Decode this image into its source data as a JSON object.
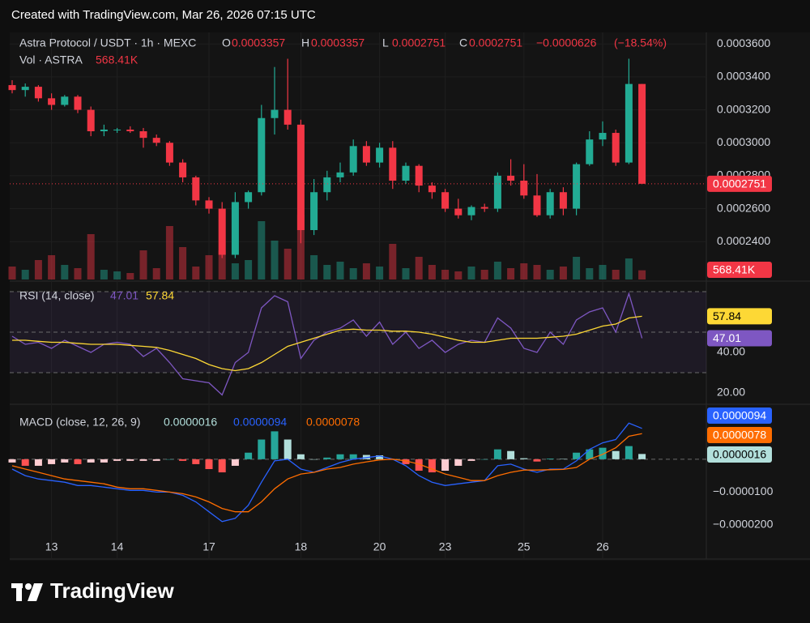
{
  "header": {
    "credit": "Created with TradingView.com, Mar 26, 2026 07:15 UTC"
  },
  "chart_data": {
    "type": "candlestick",
    "title": "Astra Protocol / USDT · 1h · MEXC",
    "ohlc_labels": [
      "O",
      "H",
      "L",
      "C"
    ],
    "change": {
      "value": -6.26e-05,
      "label": "−0.0000626",
      "percent": -18.54,
      "percent_label": "(−18.54%)"
    },
    "categories": [
      null,
      null,
      null,
      "13",
      null,
      null,
      null,
      null,
      "14",
      null,
      null,
      null,
      null,
      null,
      null,
      "17",
      null,
      null,
      null,
      null,
      null,
      null,
      "18",
      null,
      null,
      null,
      null,
      null,
      "20",
      null,
      null,
      null,
      null,
      "23",
      null,
      null,
      null,
      null,
      null,
      "25",
      null,
      null,
      null,
      null,
      null,
      "26",
      null,
      null,
      null
    ],
    "ohlc": [
      [
        0.000335,
        0.000338,
        0.00033,
        0.000332
      ],
      [
        0.000332,
        0.000336,
        0.000328,
        0.000334
      ],
      [
        0.000334,
        0.000335,
        0.000325,
        0.000327
      ],
      [
        0.000327,
        0.00033,
        0.00032,
        0.000323
      ],
      [
        0.000323,
        0.000329,
        0.000322,
        0.000328
      ],
      [
        0.000328,
        0.000329,
        0.000318,
        0.00032
      ],
      [
        0.00032,
        0.000322,
        0.000304,
        0.000307
      ],
      [
        0.000307,
        0.000311,
        0.000304,
        0.000308
      ],
      [
        0.000308,
        0.000309,
        0.000306,
        0.000308
      ],
      [
        0.000308,
        0.00031,
        0.000306,
        0.000307
      ],
      [
        0.000307,
        0.000309,
        0.000297,
        0.000303
      ],
      [
        0.000303,
        0.000305,
        0.000298,
        0.0003
      ],
      [
        0.0003,
        0.000301,
        0.000286,
        0.000288
      ],
      [
        0.000288,
        0.00029,
        0.000276,
        0.000279
      ],
      [
        0.000279,
        0.00028,
        0.000262,
        0.000265
      ],
      [
        0.000265,
        0.000267,
        0.000257,
        0.00026
      ],
      [
        0.00026,
        0.000264,
        0.00023,
        0.000232
      ],
      [
        0.000232,
        0.00027,
        0.00023,
        0.000264
      ],
      [
        0.000264,
        0.000271,
        0.00026,
        0.00027
      ],
      [
        0.00027,
        0.000323,
        0.000268,
        0.000315
      ],
      [
        0.000315,
        0.000346,
        0.000305,
        0.00032
      ],
      [
        0.00032,
        0.000351,
        0.000308,
        0.000311
      ],
      [
        0.000311,
        0.000314,
        0.000239,
        0.000247
      ],
      [
        0.000247,
        0.000278,
        0.000244,
        0.00027
      ],
      [
        0.00027,
        0.000283,
        0.000265,
        0.000279
      ],
      [
        0.000279,
        0.000288,
        0.000276,
        0.000282
      ],
      [
        0.000282,
        0.000302,
        0.00028,
        0.000298
      ],
      [
        0.000298,
        0.000301,
        0.000286,
        0.000288
      ],
      [
        0.000288,
        0.0003,
        0.000285,
        0.000297
      ],
      [
        0.000297,
        0.000301,
        0.000272,
        0.000277
      ],
      [
        0.000277,
        0.000288,
        0.000275,
        0.000286
      ],
      [
        0.000286,
        0.000287,
        0.00027,
        0.000274
      ],
      [
        0.000274,
        0.000276,
        0.000266,
        0.00027
      ],
      [
        0.00027,
        0.000272,
        0.000258,
        0.00026
      ],
      [
        0.00026,
        0.000266,
        0.000254,
        0.000256
      ],
      [
        0.000256,
        0.000262,
        0.000253,
        0.000261
      ],
      [
        0.000261,
        0.000263,
        0.000258,
        0.00026
      ],
      [
        0.00026,
        0.000282,
        0.000258,
        0.00028
      ],
      [
        0.00028,
        0.00029,
        0.000274,
        0.000277
      ],
      [
        0.000277,
        0.000287,
        0.000266,
        0.000268
      ],
      [
        0.000268,
        0.000281,
        0.000255,
        0.000256
      ],
      [
        0.000256,
        0.000272,
        0.000254,
        0.00027
      ],
      [
        0.00027,
        0.000273,
        0.000256,
        0.00026
      ],
      [
        0.00026,
        0.000288,
        0.000256,
        0.000287
      ],
      [
        0.000287,
        0.000307,
        0.000286,
        0.000302
      ],
      [
        0.000302,
        0.000313,
        0.000298,
        0.000306
      ],
      [
        0.000306,
        0.000308,
        0.000286,
        0.000288
      ],
      [
        0.000288,
        0.000351,
        0.000287,
        0.0003357
      ],
      [
        0.0003357,
        0.0003357,
        0.0002751,
        0.0002751
      ]
    ],
    "up_color": "#22ab94",
    "down_color": "#f23645",
    "ylim": [
      0.000217,
      0.000367
    ],
    "yticks": [
      {
        "value": 0.00024,
        "label": "0.0002400"
      },
      {
        "value": 0.00026,
        "label": "0.0002600"
      },
      {
        "value": 0.00028,
        "label": "0.0002800"
      },
      {
        "value": 0.0003,
        "label": "0.0003000"
      },
      {
        "value": 0.00032,
        "label": "0.0003200"
      },
      {
        "value": 0.00034,
        "label": "0.0003400"
      },
      {
        "value": 0.00036,
        "label": "0.0003600"
      }
    ],
    "grid": true,
    "volume": {
      "name": "Vol · ASTRA",
      "values": [
        800000,
        600000,
        1200000,
        1500000,
        900000,
        700000,
        2800000,
        600000,
        500000,
        400000,
        1800000,
        700000,
        3300000,
        2000000,
        800000,
        1500000,
        1800000,
        1000000,
        1200000,
        3600000,
        2400000,
        1900000,
        4000000,
        1500000,
        900000,
        1100000,
        700000,
        1000000,
        800000,
        2200000,
        700000,
        1400000,
        900000,
        600000,
        500000,
        800000,
        600000,
        1100000,
        700000,
        1000000,
        900000,
        600000,
        800000,
        1400000,
        700000,
        900000,
        600000,
        1300000,
        568410
      ],
      "ylim": [
        0,
        4500000
      ],
      "last_label": "568.41K"
    },
    "rsi": {
      "name": "RSI (14, close)",
      "color": "#7e57c2",
      "values": [
        48,
        44,
        45,
        42,
        46,
        43,
        40,
        44,
        45,
        44,
        38,
        42,
        35,
        27,
        26,
        25,
        19,
        35,
        40,
        62,
        68,
        65,
        37,
        46,
        50,
        52,
        56,
        48,
        55,
        44,
        50,
        42,
        46,
        40,
        44,
        46,
        45,
        57,
        52,
        42,
        40,
        50,
        44,
        56,
        60,
        62,
        50,
        69,
        47.01
      ],
      "ma": {
        "color": "#fdd835",
        "values": [
          46,
          46,
          45.5,
          45,
          45,
          44.5,
          44,
          44,
          44,
          43.5,
          43,
          42.5,
          41,
          39,
          37,
          34,
          32,
          31,
          32,
          35,
          39,
          43,
          45,
          47,
          49,
          51,
          51.5,
          51,
          51,
          50.5,
          50.5,
          50,
          49,
          47.5,
          46,
          45,
          45,
          46,
          47,
          47,
          47,
          47.5,
          48,
          49,
          51,
          53,
          54,
          57,
          57.84
        ]
      },
      "ylim": [
        15.2,
        74.8
      ],
      "yticks": [
        {
          "value": 20,
          "label": "20.00"
        },
        {
          "value": 40,
          "label": "40.00"
        }
      ],
      "levels": [
        30,
        50,
        70
      ]
    },
    "macd": {
      "name": "MACD (close, 12, 26, 9)",
      "macd": {
        "color": "#2962ff",
        "values": [
          -3e-06,
          -5e-06,
          -6e-06,
          -6.5e-06,
          -7e-06,
          -8e-06,
          -8e-06,
          -8.5e-06,
          -9e-06,
          -9.5e-06,
          -9.5e-06,
          -1e-05,
          -1e-05,
          -1.1e-05,
          -1.3e-05,
          -1.6e-05,
          -1.9e-05,
          -1.8e-05,
          -1.4e-05,
          -7e-06,
          -5e-07,
          0,
          -3e-06,
          -4e-06,
          -2.5e-06,
          -1e-06,
          0,
          5e-07,
          1e-06,
          0,
          -2e-06,
          -5e-06,
          -7e-06,
          -8e-06,
          -7.5e-06,
          -7e-06,
          -6.5e-06,
          -2e-06,
          -1.5e-06,
          -3e-06,
          -4e-06,
          -3e-06,
          -3e-06,
          -5e-07,
          3e-06,
          5e-06,
          6e-06,
          1.1e-05,
          9.4e-06
        ]
      },
      "signal": {
        "color": "#ff6d00",
        "values": [
          -2e-06,
          -3e-06,
          -4e-06,
          -5e-06,
          -6e-06,
          -6.5e-06,
          -7e-06,
          -7.5e-06,
          -8.5e-06,
          -9e-06,
          -9e-06,
          -9.5e-06,
          -1e-05,
          -1.05e-05,
          -1.15e-05,
          -1.3e-05,
          -1.5e-05,
          -1.6e-05,
          -1.6e-05,
          -1.3e-05,
          -9e-06,
          -6e-06,
          -4.5e-06,
          -4e-06,
          -3e-06,
          -2.5e-06,
          -1.5e-06,
          -8e-07,
          -2e-07,
          0,
          -5e-07,
          -1.5e-06,
          -3e-06,
          -4.5e-06,
          -5.5e-06,
          -6.5e-06,
          -6.5e-06,
          -5e-06,
          -4e-06,
          -3.3e-06,
          -3.3e-06,
          -3.2e-06,
          -3.1e-06,
          -2.5e-06,
          0,
          1.5e-06,
          3.5e-06,
          7e-06,
          7.8e-06
        ]
      },
      "histogram": {
        "colors": [
          "#26a69a",
          "#b2dfdb",
          "#ff5252",
          "#ffcdd2"
        ],
        "values": [
          -1e-06,
          -2e-06,
          -2e-06,
          -1.5e-06,
          -1e-06,
          -1.5e-06,
          -1e-06,
          -1e-06,
          -5e-07,
          -5e-07,
          -5e-07,
          -5e-07,
          0,
          -5e-07,
          -1.5e-06,
          -3e-06,
          -4e-06,
          -2e-06,
          2e-06,
          6e-06,
          8.5e-06,
          6e-06,
          1.5e-06,
          0,
          5e-07,
          1.5e-06,
          1.5e-06,
          1.3e-06,
          1.2e-06,
          0,
          -1.5e-06,
          -3.5e-06,
          -4e-06,
          -3.5e-06,
          -2e-06,
          -5e-07,
          0,
          3e-06,
          2.5e-06,
          3e-07,
          -7e-07,
          2e-07,
          1e-07,
          2e-06,
          3e-06,
          3.5e-06,
          2.5e-06,
          4e-06,
          1.6e-06
        ]
      },
      "ylim": [
        -3.04e-05,
        1.65e-05
      ],
      "yticks": [
        {
          "value": -1e-05,
          "label": "−0.0000100"
        },
        {
          "value": -2e-05,
          "label": "−0.0000200"
        }
      ]
    }
  },
  "footer": {
    "brand": "TradingView"
  }
}
